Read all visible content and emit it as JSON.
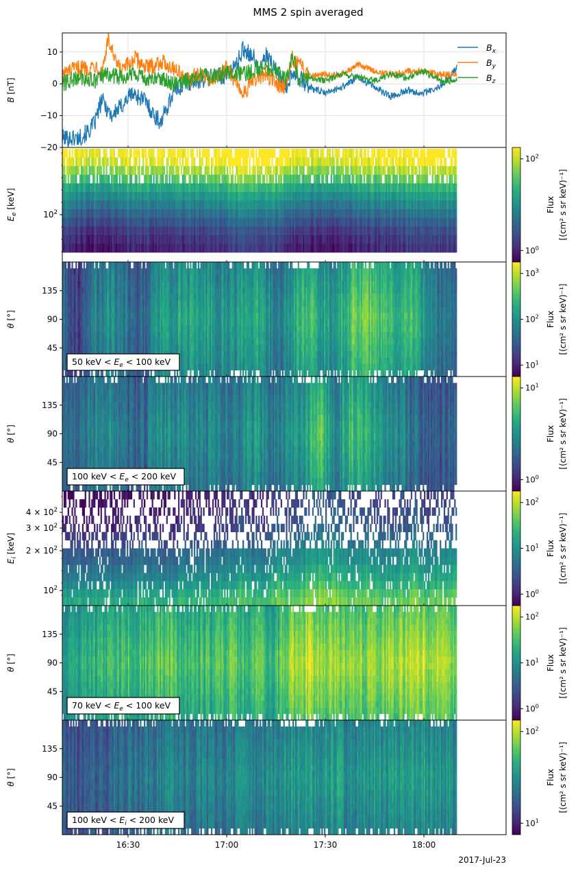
{
  "figure": {
    "title": "MMS 2 spin averaged",
    "date_label": "2017-Jul-23"
  },
  "colormap": [
    "#440154",
    "#472d7b",
    "#3b528b",
    "#2c728e",
    "#21918c",
    "#28ae80",
    "#5ec962",
    "#addc30",
    "#fde725"
  ],
  "chart_data": [
    {
      "type": "line",
      "id": "magnetic-field",
      "ylabel": "B [nT]",
      "ylim": [
        -20,
        16
      ],
      "yticks": [
        -20,
        -10,
        0,
        10
      ],
      "grid": true,
      "legend_position": "top-right",
      "x_range": [
        "16:10",
        "18:25"
      ],
      "xticks": [
        "16:30",
        "17:00",
        "17:30",
        "18:00"
      ],
      "data_end": "18:10",
      "series": [
        {
          "name": "B_x",
          "color": "#1f77b4",
          "x": [
            "16:10",
            "16:15",
            "16:18",
            "16:20",
            "16:22",
            "16:25",
            "16:28",
            "16:31",
            "16:35",
            "16:38",
            "16:40",
            "16:44",
            "16:50",
            "16:55",
            "17:00",
            "17:03",
            "17:05",
            "17:08",
            "17:10",
            "17:12",
            "17:15",
            "17:18",
            "17:20",
            "17:25",
            "17:30",
            "17:35",
            "17:40",
            "17:45",
            "17:50",
            "17:55",
            "18:00",
            "18:05",
            "18:10"
          ],
          "values": [
            -17,
            -17,
            -15,
            -12,
            -5,
            -10,
            -7,
            -3,
            -5,
            -10,
            -12,
            -2,
            1,
            2,
            3,
            6,
            11,
            9,
            3,
            9,
            4,
            -1,
            4,
            -1,
            -3,
            -1,
            2,
            -1,
            -4,
            -2,
            -3,
            -1,
            5
          ]
        },
        {
          "name": "B_y",
          "color": "#ff7f0e",
          "x": [
            "16:10",
            "16:15",
            "16:18",
            "16:20",
            "16:22",
            "16:24",
            "16:26",
            "16:28",
            "16:32",
            "16:36",
            "16:40",
            "16:44",
            "16:48",
            "16:52",
            "16:56",
            "17:00",
            "17:05",
            "17:08",
            "17:12",
            "17:15",
            "17:18",
            "17:20",
            "17:25",
            "17:30",
            "17:35",
            "17:40",
            "17:45",
            "17:50",
            "17:55",
            "18:00",
            "18:05",
            "18:10"
          ],
          "values": [
            3,
            5,
            5,
            6,
            4,
            14,
            7,
            4,
            8,
            5,
            7,
            5,
            1,
            3,
            1,
            5,
            -3,
            1,
            3,
            0,
            -1,
            8,
            3,
            3,
            3,
            6,
            4,
            3,
            4,
            4,
            3,
            3
          ]
        },
        {
          "name": "B_z",
          "color": "#2ca02c",
          "x": [
            "16:10",
            "16:15",
            "16:20",
            "16:24",
            "16:28",
            "16:32",
            "16:36",
            "16:40",
            "16:44",
            "16:48",
            "16:52",
            "16:56",
            "17:00",
            "17:05",
            "17:10",
            "17:15",
            "17:18",
            "17:20",
            "17:22",
            "17:25",
            "17:30",
            "17:35",
            "17:40",
            "17:45",
            "17:50",
            "17:55",
            "18:00",
            "18:05",
            "18:10"
          ],
          "values": [
            0,
            2,
            1,
            3,
            2,
            4,
            1,
            2,
            0,
            1,
            3,
            2,
            4,
            3,
            5,
            4,
            1,
            9,
            2,
            2,
            1,
            3,
            2,
            1,
            3,
            2,
            4,
            1,
            1
          ]
        }
      ]
    },
    {
      "type": "heatmap",
      "id": "electron-energy",
      "ylabel": "E_e [keV]",
      "yscale": "log",
      "ytick_labels": [
        "10^2"
      ],
      "colorbar": {
        "label": "Flux",
        "unit": "[(cm^2 s sr keV)^-1]",
        "scale": "log",
        "tick_labels": [
          "10^0",
          "10^2"
        ]
      },
      "rows": 12,
      "row_levels": [
        0.96,
        0.92,
        0.8,
        0.68,
        0.56,
        0.46,
        0.38,
        0.3,
        0.22,
        0.15,
        0.1,
        0.06
      ],
      "time_profile": [
        0.05,
        0.0,
        0.0,
        0.05,
        0.05,
        0.05,
        0.05,
        0.1,
        0.15,
        0.1,
        0.05,
        0.0,
        0.0,
        0.05,
        0.05,
        0.1,
        0.1,
        0.1
      ],
      "sparse_above_row": 4
    },
    {
      "type": "heatmap",
      "id": "electron-pitch-50-100",
      "ylabel": "θ [°]",
      "yticks": [
        45,
        90,
        135
      ],
      "annotation": "50 keV < E_e < 100 keV",
      "colorbar": {
        "label": "Flux",
        "unit": "[(cm^2 s sr keV)^-1]",
        "scale": "log",
        "tick_labels": [
          "10^1",
          "10^2",
          "10^3"
        ]
      },
      "rows": 18,
      "time_profile": [
        0.4,
        0.15,
        0.45,
        0.5,
        0.45,
        0.3,
        0.5,
        0.55,
        0.6,
        0.55,
        0.55,
        0.5,
        0.6,
        0.6,
        0.45,
        0.55,
        0.7,
        0.6,
        0.55,
        0.75,
        0.82,
        0.7,
        0.6,
        0.7,
        0.5,
        0.4,
        0.4
      ]
    },
    {
      "type": "heatmap",
      "id": "electron-pitch-100-200",
      "ylabel": "θ [°]",
      "yticks": [
        45,
        90,
        135
      ],
      "annotation": "100 keV < E_e < 200 keV",
      "colorbar": {
        "label": "Flux",
        "unit": "[(cm^2 s sr keV)^-1]",
        "scale": "log",
        "tick_labels": [
          "10^0",
          "10^1"
        ]
      },
      "rows": 18,
      "time_profile": [
        0.4,
        0.35,
        0.45,
        0.5,
        0.4,
        0.3,
        0.45,
        0.5,
        0.5,
        0.5,
        0.45,
        0.4,
        0.5,
        0.55,
        0.4,
        0.5,
        0.6,
        0.8,
        0.5,
        0.7,
        0.65,
        0.55,
        0.5,
        0.4,
        0.3,
        0.3,
        0.35
      ]
    },
    {
      "type": "heatmap",
      "id": "ion-energy",
      "ylabel": "E_i [keV]",
      "yscale": "log",
      "ytick_labels": [
        "10^2",
        "2 × 10^2",
        "3 × 10^2",
        "4 × 10^2"
      ],
      "colorbar": {
        "label": "Flux",
        "unit": "[(cm^2 s sr keV)^-1]",
        "scale": "log",
        "tick_labels": [
          "10^0",
          "10^1",
          "10^2"
        ]
      },
      "rows": 14,
      "row_levels": [
        0.05,
        0.05,
        0.08,
        0.1,
        0.12,
        0.18,
        0.22,
        0.3,
        0.32,
        0.38,
        0.42,
        0.48,
        0.55,
        0.6
      ],
      "time_profile": [
        0.0,
        0.0,
        0.0,
        0.0,
        0.0,
        0.05,
        0.0,
        0.0,
        0.05,
        0.05,
        0.05,
        0.1,
        0.15,
        0.05,
        0.15,
        0.15,
        0.2,
        0.25,
        0.2,
        0.15,
        0.2,
        0.15,
        0.15,
        0.2,
        0.15,
        0.15,
        0.2
      ],
      "sparse_above_row": 7
    },
    {
      "type": "heatmap",
      "id": "ion-pitch-70-100",
      "ylabel": "θ [°]",
      "yticks": [
        45,
        90,
        135
      ],
      "annotation": "70 keV < E_e < 100 keV",
      "colorbar": {
        "label": "Flux",
        "unit": "[(cm^2 s sr keV)^-1]",
        "scale": "log",
        "tick_labels": [
          "10^0",
          "10^1",
          "10^2"
        ]
      },
      "rows": 18,
      "time_profile": [
        0.6,
        0.6,
        0.62,
        0.68,
        0.7,
        0.72,
        0.75,
        0.78,
        0.72,
        0.7,
        0.72,
        0.75,
        0.75,
        0.72,
        0.7,
        0.85,
        0.92,
        0.9,
        0.88,
        0.85,
        0.82,
        0.85,
        0.9,
        0.92,
        0.9,
        0.88,
        0.85
      ]
    },
    {
      "type": "heatmap",
      "id": "ion-pitch-100-200",
      "ylabel": "θ [°]",
      "yticks": [
        45,
        90,
        135
      ],
      "annotation": "100 keV < E_i < 200 keV",
      "colorbar": {
        "label": "Flux",
        "unit": "[(cm^2 s sr keV)^-1]",
        "scale": "log",
        "tick_labels": [
          "10^1",
          "10^2"
        ]
      },
      "rows": 18,
      "time_profile": [
        0.35,
        0.3,
        0.35,
        0.35,
        0.4,
        0.38,
        0.42,
        0.45,
        0.45,
        0.45,
        0.45,
        0.48,
        0.48,
        0.45,
        0.48,
        0.55,
        0.55,
        0.55,
        0.55,
        0.52,
        0.52,
        0.55,
        0.58,
        0.58,
        0.55,
        0.52,
        0.5
      ]
    }
  ]
}
